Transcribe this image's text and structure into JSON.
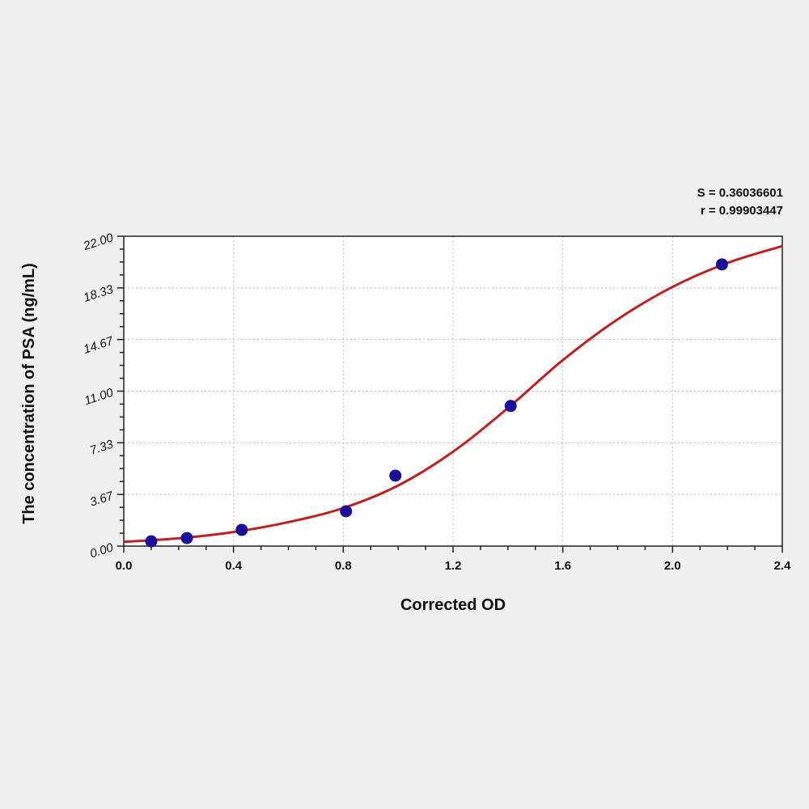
{
  "chart_data": {
    "type": "scatter",
    "xlabel": "Corrected OD",
    "ylabel": "The concentration of PSA (ng/mL)",
    "xlim": [
      0,
      2.4
    ],
    "ylim": [
      0,
      22
    ],
    "x_ticks": [
      "0.0",
      "0.4",
      "0.8",
      "1.2",
      "1.6",
      "2.0",
      "2.4"
    ],
    "y_ticks": [
      "0.00",
      "3.67",
      "7.33",
      "11.00",
      "14.67",
      "18.33",
      "22.00"
    ],
    "grid": true,
    "annotations": {
      "s": "S = 0.36036601",
      "r": "r = 0.99903447"
    },
    "points": {
      "x": [
        0.1,
        0.23,
        0.43,
        0.81,
        0.99,
        1.41,
        2.18
      ],
      "y": [
        0.34,
        0.57,
        1.15,
        2.47,
        5.0,
        9.95,
        20.0
      ],
      "color": "#1a0f9a"
    },
    "fit_curve": {
      "x": [
        0,
        0.2,
        0.4,
        0.6,
        0.8,
        1.0,
        1.2,
        1.4,
        1.6,
        1.8,
        2.0,
        2.2,
        2.4
      ],
      "y": [
        0.3,
        0.55,
        1.0,
        1.7,
        2.7,
        4.3,
        6.7,
        9.8,
        13.2,
        16.1,
        18.4,
        20.1,
        21.3
      ],
      "color": "#c0201e"
    }
  }
}
